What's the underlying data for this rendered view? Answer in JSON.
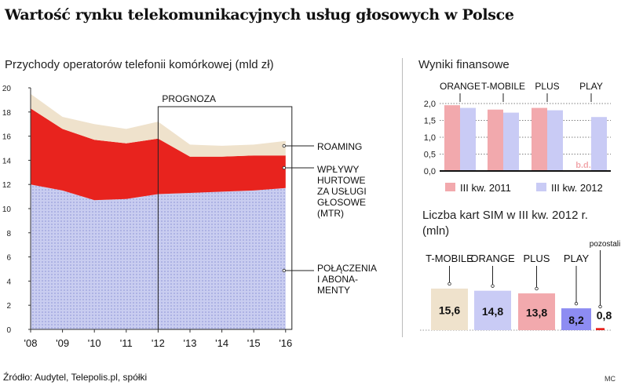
{
  "title": "Wartość rynku telekomunikacyjnych usług głosowych w Polsce",
  "footer": {
    "source": "Źródło: Audytel, Telepolis.pl, spółki",
    "author": "MC"
  },
  "colors": {
    "roaming": "#efe2cc",
    "mtr": "#e8231e",
    "calls": "#c9cdf0",
    "dots": "#8c93d6",
    "q3_2011": "#f2a9ad",
    "q3_2012": "#c9cbf5",
    "bd": "#f2a9ad",
    "sim": [
      "#efe2cc",
      "#c9cbf5",
      "#f2a9ad",
      "#8d8cf2",
      "#e8231e"
    ]
  },
  "chart_data": [
    {
      "type": "area",
      "title": "Przychody operatorów telefonii komórkowej (mld zł)",
      "x": [
        "'08",
        "'09",
        "'10",
        "'11",
        "'12",
        "'13",
        "'14",
        "'15",
        "'16"
      ],
      "ylim": [
        0,
        20
      ],
      "yticks": [
        0,
        2,
        4,
        6,
        8,
        10,
        12,
        14,
        16,
        18,
        20
      ],
      "series": [
        {
          "name": "POŁĄCZENIA I ABONAMENTY",
          "label_lines": [
            "POŁĄCZENIA",
            "I ABONA-",
            "MENTY"
          ],
          "values": [
            12.0,
            11.5,
            10.7,
            10.8,
            11.2,
            11.3,
            11.4,
            11.5,
            11.7
          ]
        },
        {
          "name": "WPŁYWY HURTOWE ZA USŁUGI GŁOSOWE (MTR)",
          "label_lines": [
            "WPŁYWY",
            "HURTOWE",
            "ZA USŁUGI",
            "GŁOSOWE",
            "(MTR)"
          ],
          "values": [
            6.3,
            5.1,
            5.0,
            4.6,
            4.6,
            3.0,
            2.9,
            2.9,
            2.7
          ]
        },
        {
          "name": "ROAMING",
          "label_lines": [
            "ROAMING"
          ],
          "values": [
            1.2,
            1.0,
            1.3,
            1.2,
            1.4,
            1.0,
            0.9,
            0.9,
            1.2
          ]
        }
      ],
      "forecast": {
        "label": "PROGNOZA",
        "from": "'12",
        "to": "'16"
      }
    },
    {
      "type": "bar",
      "title": "Wyniki finansowe",
      "categories": [
        "ORANGE",
        "T-MOBILE",
        "PLUS",
        "PLAY"
      ],
      "series": [
        {
          "name": "III kw. 2011",
          "values": [
            1.95,
            1.82,
            1.87,
            null
          ]
        },
        {
          "name": "III kw. 2012",
          "values": [
            1.87,
            1.73,
            1.8,
            1.6
          ]
        }
      ],
      "missing_label": "b.d.",
      "ylim": [
        0,
        2.0
      ],
      "ytick_labels": [
        "0,0",
        "0,5",
        "1,0",
        "1,5",
        "2,0"
      ]
    },
    {
      "type": "bar",
      "title": "Liczba kart SIM w III kw. 2012 r.",
      "subtitle": "(mln)",
      "categories": [
        "T-MOBILE",
        "ORANGE",
        "PLUS",
        "PLAY",
        "pozostali"
      ],
      "values": [
        15.6,
        14.8,
        13.8,
        8.2,
        0.8
      ],
      "value_labels": [
        "15,6",
        "14,8",
        "13,8",
        "8,2",
        "0,8"
      ]
    }
  ]
}
